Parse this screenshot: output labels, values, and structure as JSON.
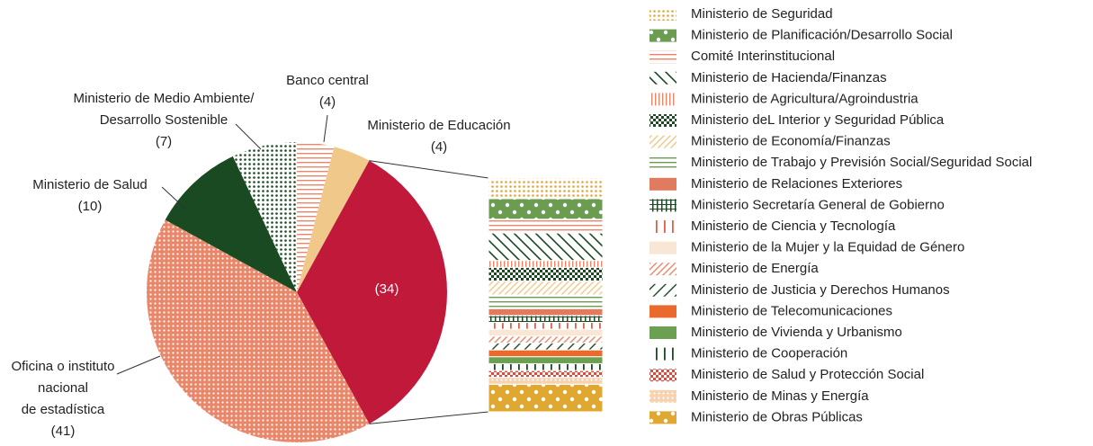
{
  "chart_data": {
    "type": "pie-of-bar",
    "pie": [
      {
        "label": [
          "Banco central"
        ],
        "value": 4,
        "value_label": "(4)",
        "color": "#e8876a",
        "pattern": "hlines"
      },
      {
        "label": [
          "Ministerio de Educación"
        ],
        "value": 4,
        "value_label": "(4)",
        "color": "#f0c88a",
        "pattern": "solid"
      },
      {
        "value": 34,
        "value_label": "(34)",
        "color": "#c0193a",
        "pattern": "solid"
      },
      {
        "label": [
          "Oficina o instituto",
          "nacional",
          "de estadística"
        ],
        "value": 41,
        "value_label": "(41)",
        "color": "#e8876a",
        "pattern": "dots-on"
      },
      {
        "label": [
          "Ministerio de Salud"
        ],
        "value": 10,
        "value_label": "(10)",
        "color": "#1a4a22",
        "pattern": "solid"
      },
      {
        "label": [
          "Ministerio de Medio Ambiente/",
          "Desarrollo Sostenible"
        ],
        "value": 7,
        "value_label": "(7)",
        "color": "#1a4a22",
        "pattern": "dots"
      }
    ],
    "breakdown": [
      {
        "name": "Ministerio de Seguridad",
        "value": 3,
        "color": "#e8a33a",
        "pattern": "dots"
      },
      {
        "name": "Ministerio de Planificación/Desarrollo Social",
        "value": 3,
        "color": "#6a9d50",
        "pattern": "big-dots-on"
      },
      {
        "name": "Comité Interinstitucional",
        "value": 2,
        "color": "#e8876a",
        "pattern": "hlines"
      },
      {
        "name": "Ministerio de Hacienda/Finanzas",
        "value": 4,
        "color": "#1a4a22",
        "pattern": "diag-back"
      },
      {
        "name": "Ministerio de Agricultura/Agroindustria",
        "value": 1,
        "color": "#e8876a",
        "pattern": "vlines"
      },
      {
        "name": "Ministerio deL Interior y Seguridad Pública",
        "value": 2,
        "color": "#1a4a22",
        "pattern": "checker"
      },
      {
        "name": "Ministerio de Economía/Finanzas",
        "value": 2,
        "color": "#f0c88a",
        "pattern": "diag-fwd"
      },
      {
        "name": "Ministerio de Trabajo y Previsión Social/Seguridad Social",
        "value": 2,
        "color": "#6a9d50",
        "pattern": "hlines"
      },
      {
        "name": "Ministerio de Relaciones Exteriores",
        "value": 1,
        "color": "#e07b5f",
        "pattern": "solid"
      },
      {
        "name": "Ministerio Secretaría General de Gobierno",
        "value": 1,
        "color": "#1a4a22",
        "pattern": "hash"
      },
      {
        "name": "Ministerio de Ciencia y Tecnología",
        "value": 1,
        "color": "#e0604a",
        "pattern": "vlines-sparse"
      },
      {
        "name": "Ministerio de la Mujer y la Equidad de Género",
        "value": 1,
        "color": "#fae6d4",
        "pattern": "solid"
      },
      {
        "name": "Ministerio de Energía",
        "value": 1,
        "color": "#e8876a",
        "pattern": "diag-fwd"
      },
      {
        "name": "Ministerio de Justicia y Derechos Humanos",
        "value": 1,
        "color": "#1a4a22",
        "pattern": "diag-fwd-sparse"
      },
      {
        "name": "Ministerio de Telecomunicaciones",
        "value": 1,
        "color": "#ea6a2e",
        "pattern": "solid"
      },
      {
        "name": "Ministerio de Vivienda y Urbanismo",
        "value": 1,
        "color": "#6aa050",
        "pattern": "solid"
      },
      {
        "name": "Ministerio de Cooperación",
        "value": 1,
        "color": "#1a4a22",
        "pattern": "vlines-sparse"
      },
      {
        "name": "Ministerio de Salud y Protección Social",
        "value": 1,
        "color": "#e04a3a",
        "pattern": "checker"
      },
      {
        "name": "Ministerio de Minas y Energía",
        "value": 1,
        "color": "#f5d2b0",
        "pattern": "dots-on"
      },
      {
        "name": "Ministerio de Obras Públicas",
        "value": 4,
        "color": "#e0a830",
        "pattern": "big-dots-on"
      }
    ]
  }
}
